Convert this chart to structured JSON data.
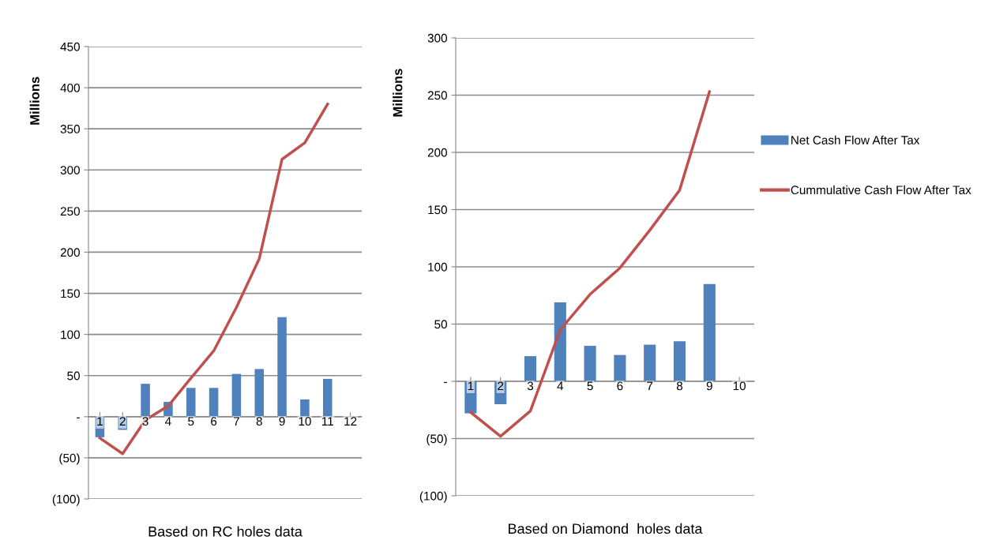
{
  "chart_data": [
    {
      "type": "bar",
      "xlabel": "Based on RC holes data",
      "ylabel": "Millions",
      "categories": [
        "1",
        "2",
        "3",
        "4",
        "5",
        "6",
        "7",
        "8",
        "9",
        "10",
        "11",
        "12"
      ],
      "series": [
        {
          "color": "#4f81bd",
          "values": [
            -25,
            -16,
            40,
            18,
            35,
            35,
            52,
            58,
            121,
            21,
            46,
            null
          ]
        },
        {
          "type": "line",
          "color": "#c0504d",
          "values": [
            -26,
            -45,
            -4,
            13,
            47,
            80,
            133,
            192,
            313,
            333,
            380,
            null
          ]
        }
      ],
      "ylim": [
        -100,
        450
      ],
      "yticks": [
        {
          "value": -100,
          "label": "(100)"
        },
        {
          "value": -50,
          "label": "(50)"
        },
        {
          "value": 0,
          "label": "-"
        },
        50,
        100,
        150,
        200,
        250,
        300,
        350,
        400,
        450
      ],
      "grid": "y",
      "legend": false,
      "marker": "none",
      "line_style": "solid"
    },
    {
      "type": "bar",
      "xlabel": "Based on Diamond  holes data",
      "ylabel": "Millions",
      "categories": [
        "1",
        "2",
        "3",
        "4",
        "5",
        "6",
        "7",
        "8",
        "9",
        "10"
      ],
      "series": [
        {
          "name": "Net Cash Flow After Tax",
          "color": "#4f81bd",
          "values": [
            -28,
            -20,
            22,
            69,
            31,
            23,
            32,
            35,
            85,
            null
          ]
        },
        {
          "type": "line",
          "name": "Cummulative Cash Flow After Tax",
          "color": "#c0504d",
          "values": [
            -27,
            -48,
            -26,
            45,
            76,
            99,
            132,
            167,
            253,
            null
          ]
        }
      ],
      "ylim": [
        -100,
        300
      ],
      "yticks": [
        {
          "value": -100,
          "label": "(100)"
        },
        {
          "value": -50,
          "label": "(50)"
        },
        {
          "value": 0,
          "label": "-"
        },
        50,
        100,
        150,
        200,
        250,
        300
      ],
      "grid": "y",
      "legend": "right",
      "marker": "none",
      "line_style": "solid"
    }
  ]
}
